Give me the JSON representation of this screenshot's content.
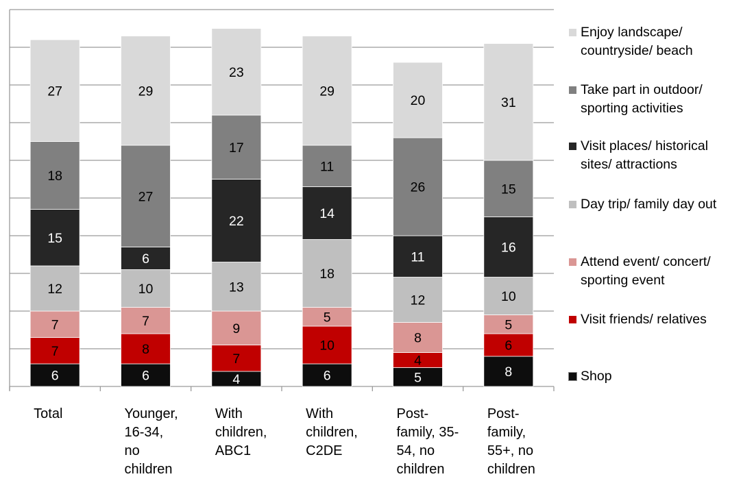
{
  "chart_data": {
    "type": "bar",
    "stacked": true,
    "categories": [
      "Total",
      "Younger, 16-34, no children",
      "With children, ABC1",
      "With children, C2DE",
      "Post-family, 35-54, no children",
      "Post-family, 55+, no children"
    ],
    "category_lines": [
      [
        "Total"
      ],
      [
        "Younger,",
        "16-34,",
        "no",
        "children"
      ],
      [
        "With",
        "children,",
        "ABC1"
      ],
      [
        "With",
        "children,",
        "C2DE"
      ],
      [
        "Post-",
        "family, 35-",
        "54, no",
        "children"
      ],
      [
        "Post-",
        "family,",
        "55+, no",
        "children"
      ]
    ],
    "series": [
      {
        "name": "Shop",
        "color": "#0d0d0d",
        "label_color": "#ffffff",
        "values": [
          6,
          6,
          4,
          6,
          5,
          8
        ]
      },
      {
        "name": "Visit friends/ relatives",
        "color": "#c00000",
        "label_color": "#000000",
        "values": [
          7,
          8,
          7,
          10,
          4,
          6
        ]
      },
      {
        "name": "Attend event/ concert/ sporting event",
        "color": "#da9694",
        "label_color": "#000000",
        "values": [
          7,
          7,
          9,
          5,
          8,
          5
        ]
      },
      {
        "name": "Day trip/ family day out",
        "color": "#bfbfbf",
        "label_color": "#000000",
        "values": [
          12,
          10,
          13,
          18,
          12,
          10
        ]
      },
      {
        "name": "Visit places/ historical sites/ attractions",
        "color": "#262626",
        "label_color": "#ffffff",
        "values": [
          15,
          6,
          22,
          14,
          11,
          16
        ]
      },
      {
        "name": "Take part in outdoor/ sporting activities",
        "color": "#808080",
        "label_color": "#000000",
        "values": [
          18,
          27,
          17,
          11,
          26,
          15
        ]
      },
      {
        "name": "Enjoy landscape/ countryside/ beach",
        "color": "#d9d9d9",
        "label_color": "#000000",
        "values": [
          27,
          29,
          23,
          29,
          20,
          31
        ]
      }
    ],
    "legend": {
      "position": "right",
      "entries": [
        {
          "name": "Enjoy landscape/ countryside/ beach",
          "lines": [
            "Enjoy landscape/",
            "countryside/ beach"
          ],
          "color": "#d9d9d9"
        },
        {
          "name": "Take part in outdoor/ sporting activities",
          "lines": [
            "Take part in outdoor/",
            "sporting activities"
          ],
          "color": "#808080"
        },
        {
          "name": "Visit places/ historical sites/ attractions",
          "lines": [
            "Visit places/ historical",
            "sites/ attractions"
          ],
          "color": "#262626"
        },
        {
          "name": "Day trip/ family day out",
          "lines": [
            "Day trip/ family day out"
          ],
          "color": "#bfbfbf"
        },
        {
          "name": "Attend event/ concert/ sporting event",
          "lines": [
            "Attend event/ concert/",
            "sporting event"
          ],
          "color": "#da9694"
        },
        {
          "name": "Visit friends/ relatives",
          "lines": [
            "Visit friends/ relatives"
          ],
          "color": "#c00000"
        },
        {
          "name": "Shop",
          "lines": [
            "Shop"
          ],
          "color": "#0d0d0d"
        }
      ]
    },
    "ylim": [
      0,
      100
    ],
    "grid": true,
    "title": "",
    "xlabel": "",
    "ylabel": ""
  }
}
